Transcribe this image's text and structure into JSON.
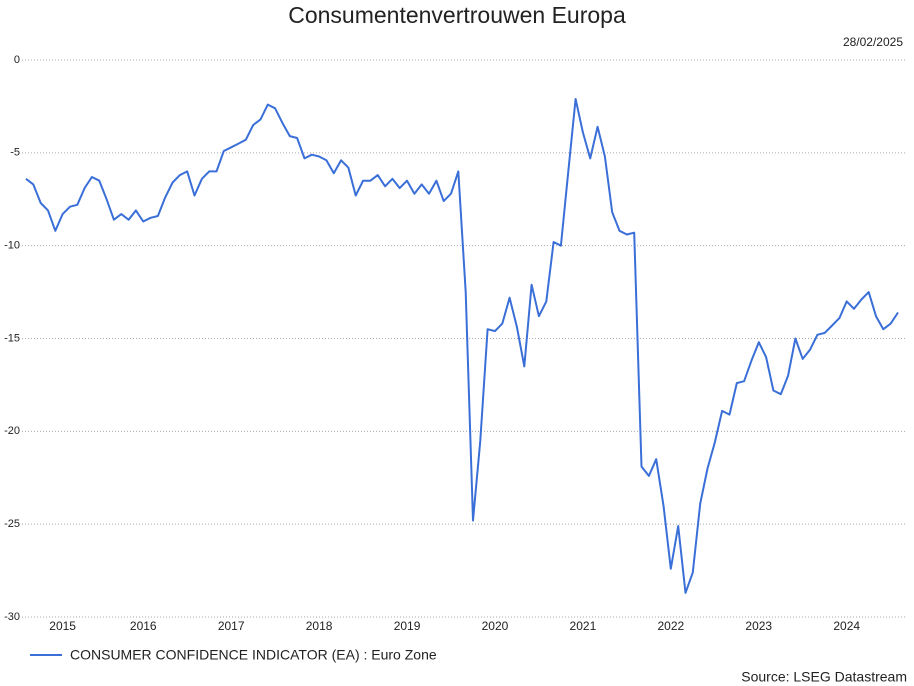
{
  "chart_data": {
    "type": "line",
    "title": "Consumentenvertrouwen Europa",
    "date": "28/02/2025",
    "source": "Source: LSEG Datastream",
    "categories": [
      null,
      null,
      null,
      null,
      null,
      "2015",
      null,
      null,
      null,
      null,
      null,
      null,
      null,
      null,
      null,
      null,
      "2016",
      null,
      null,
      null,
      null,
      null,
      null,
      null,
      null,
      null,
      null,
      null,
      "2017",
      null,
      null,
      null,
      null,
      null,
      null,
      null,
      null,
      null,
      null,
      null,
      "2018",
      null,
      null,
      null,
      null,
      null,
      null,
      null,
      null,
      null,
      null,
      null,
      "2019",
      null,
      null,
      null,
      null,
      null,
      null,
      null,
      null,
      null,
      null,
      null,
      "2020",
      null,
      null,
      null,
      null,
      null,
      null,
      null,
      null,
      null,
      null,
      null,
      "2021",
      null,
      null,
      null,
      null,
      null,
      null,
      null,
      null,
      null,
      null,
      null,
      "2022",
      null,
      null,
      null,
      null,
      null,
      null,
      null,
      null,
      null,
      null,
      null,
      "2023",
      null,
      null,
      null,
      null,
      null,
      null,
      null,
      null,
      null,
      null,
      null,
      "2024",
      null,
      null,
      null,
      null,
      null,
      null,
      null
    ],
    "series": [
      {
        "name": "CONSUMER CONFIDENCE INDICATOR (EA) : Euro Zone",
        "color": "#3a6fd8",
        "values": [
          -6.4,
          -6.7,
          -7.7,
          -8.1,
          -9.2,
          -8.3,
          -7.9,
          -7.8,
          -6.9,
          -6.3,
          -6.5,
          -7.5,
          -8.6,
          -8.3,
          -8.6,
          -8.1,
          -8.7,
          -8.5,
          -8.4,
          -7.4,
          -6.6,
          -6.2,
          -6.0,
          -7.3,
          -6.4,
          -6.0,
          -6.0,
          -4.9,
          -4.7,
          -4.5,
          -4.3,
          -3.5,
          -3.2,
          -2.4,
          -2.6,
          -3.4,
          -4.1,
          -4.2,
          -5.3,
          -5.1,
          -5.2,
          -5.4,
          -6.1,
          -5.4,
          -5.8,
          -7.3,
          -6.5,
          -6.5,
          -6.2,
          -6.8,
          -6.4,
          -6.9,
          -6.5,
          -7.2,
          -6.7,
          -7.2,
          -6.5,
          -7.6,
          -7.2,
          -6.0,
          -12.5,
          -24.8,
          -20.5,
          -14.5,
          -14.6,
          -14.2,
          -12.8,
          -14.4,
          -16.5,
          -12.1,
          -13.8,
          -13.0,
          -9.8,
          -10.0,
          -6.0,
          -2.1,
          -3.9,
          -5.3,
          -3.6,
          -5.2,
          -8.2,
          -9.2,
          -9.4,
          -9.3,
          -21.9,
          -22.4,
          -21.5,
          -24.0,
          -27.4,
          -25.1,
          -28.7,
          -27.6,
          -23.9,
          -22.0,
          -20.6,
          -18.9,
          -19.1,
          -17.4,
          -17.3,
          -16.2,
          -15.2,
          -16.0,
          -17.8,
          -18.0,
          -17.0,
          -15.0,
          -16.1,
          -15.6,
          -14.8,
          -14.7,
          -14.3,
          -13.9,
          -13.0,
          -13.4,
          -12.9,
          -12.5,
          -13.8,
          -14.5,
          -14.2,
          -13.6
        ]
      }
    ],
    "ylim": [
      -30,
      0
    ],
    "yticks": [
      0,
      -5,
      -10,
      -15,
      -20,
      -25,
      -30
    ],
    "grid": true
  }
}
